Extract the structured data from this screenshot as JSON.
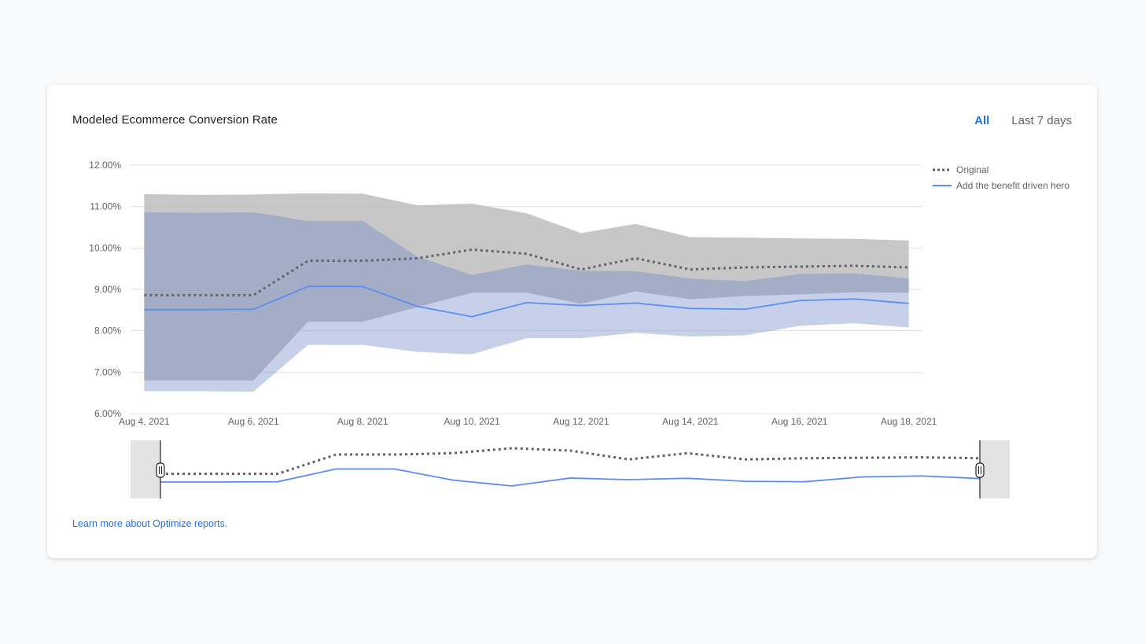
{
  "card": {
    "title": "Modeled Ecommerce Conversion Rate",
    "range_tabs": [
      {
        "label": "All",
        "active": true
      },
      {
        "label": "Last 7 days",
        "active": false
      }
    ],
    "footer_link": "Learn more about Optimize reports."
  },
  "chart_data": {
    "type": "line",
    "title": "Modeled Ecommerce Conversion Rate",
    "xlabel": "",
    "ylabel": "",
    "ylim": [
      6,
      12
    ],
    "y_ticks": [
      6,
      7,
      8,
      9,
      10,
      11,
      12
    ],
    "y_tick_labels": [
      "6.00%",
      "7.00%",
      "8.00%",
      "9.00%",
      "10.00%",
      "11.00%",
      "12.00%"
    ],
    "xlim": [
      3.75,
      18.25
    ],
    "x": [
      4,
      5,
      6,
      7,
      8,
      9,
      10,
      11,
      12,
      13,
      14,
      15,
      16,
      17,
      18
    ],
    "x_tick_values": [
      4,
      6,
      8,
      10,
      12,
      14,
      16,
      18
    ],
    "x_tick_labels": [
      "Aug 4, 2021",
      "Aug 6, 2021",
      "Aug 8, 2021",
      "Aug 10, 2021",
      "Aug 12, 2021",
      "Aug 14, 2021",
      "Aug 16, 2021",
      "Aug 18, 2021"
    ],
    "grid": true,
    "legend_position": "top-right",
    "series": [
      {
        "name": "Original",
        "style": "dotted",
        "color": "#5f6368",
        "band_color": "#bdbdbd",
        "values": [
          8.86,
          8.86,
          8.86,
          9.69,
          9.69,
          9.75,
          9.96,
          9.86,
          9.48,
          9.75,
          9.48,
          9.53,
          9.55,
          9.57,
          9.53
        ],
        "upper": [
          11.3,
          11.28,
          11.29,
          11.32,
          11.31,
          11.03,
          11.07,
          10.84,
          10.36,
          10.58,
          10.26,
          10.25,
          10.23,
          10.22,
          10.18
        ],
        "lower": [
          6.8,
          6.8,
          6.8,
          8.22,
          8.22,
          8.57,
          8.92,
          8.92,
          8.65,
          8.95,
          8.76,
          8.84,
          8.88,
          8.93,
          8.92
        ]
      },
      {
        "name": "Add the benefit driven hero",
        "style": "solid",
        "color": "#5a8ff0",
        "band_color": "#6b84c4",
        "values": [
          8.51,
          8.51,
          8.52,
          9.07,
          9.07,
          8.59,
          8.34,
          8.68,
          8.61,
          8.67,
          8.54,
          8.52,
          8.73,
          8.77,
          8.66
        ],
        "upper": [
          10.86,
          10.85,
          10.86,
          10.65,
          10.65,
          9.79,
          9.35,
          9.6,
          9.45,
          9.44,
          9.26,
          9.2,
          9.37,
          9.39,
          9.26
        ],
        "lower": [
          6.54,
          6.54,
          6.53,
          7.66,
          7.66,
          7.49,
          7.43,
          7.82,
          7.82,
          7.95,
          7.86,
          7.89,
          8.12,
          8.18,
          8.08
        ]
      }
    ]
  },
  "range_selector": {
    "selected_start": 4,
    "selected_end": 18
  },
  "colors": {
    "accent": "#1a73e8",
    "grid": "#e0e0e0",
    "axis_text": "#5f6368"
  }
}
